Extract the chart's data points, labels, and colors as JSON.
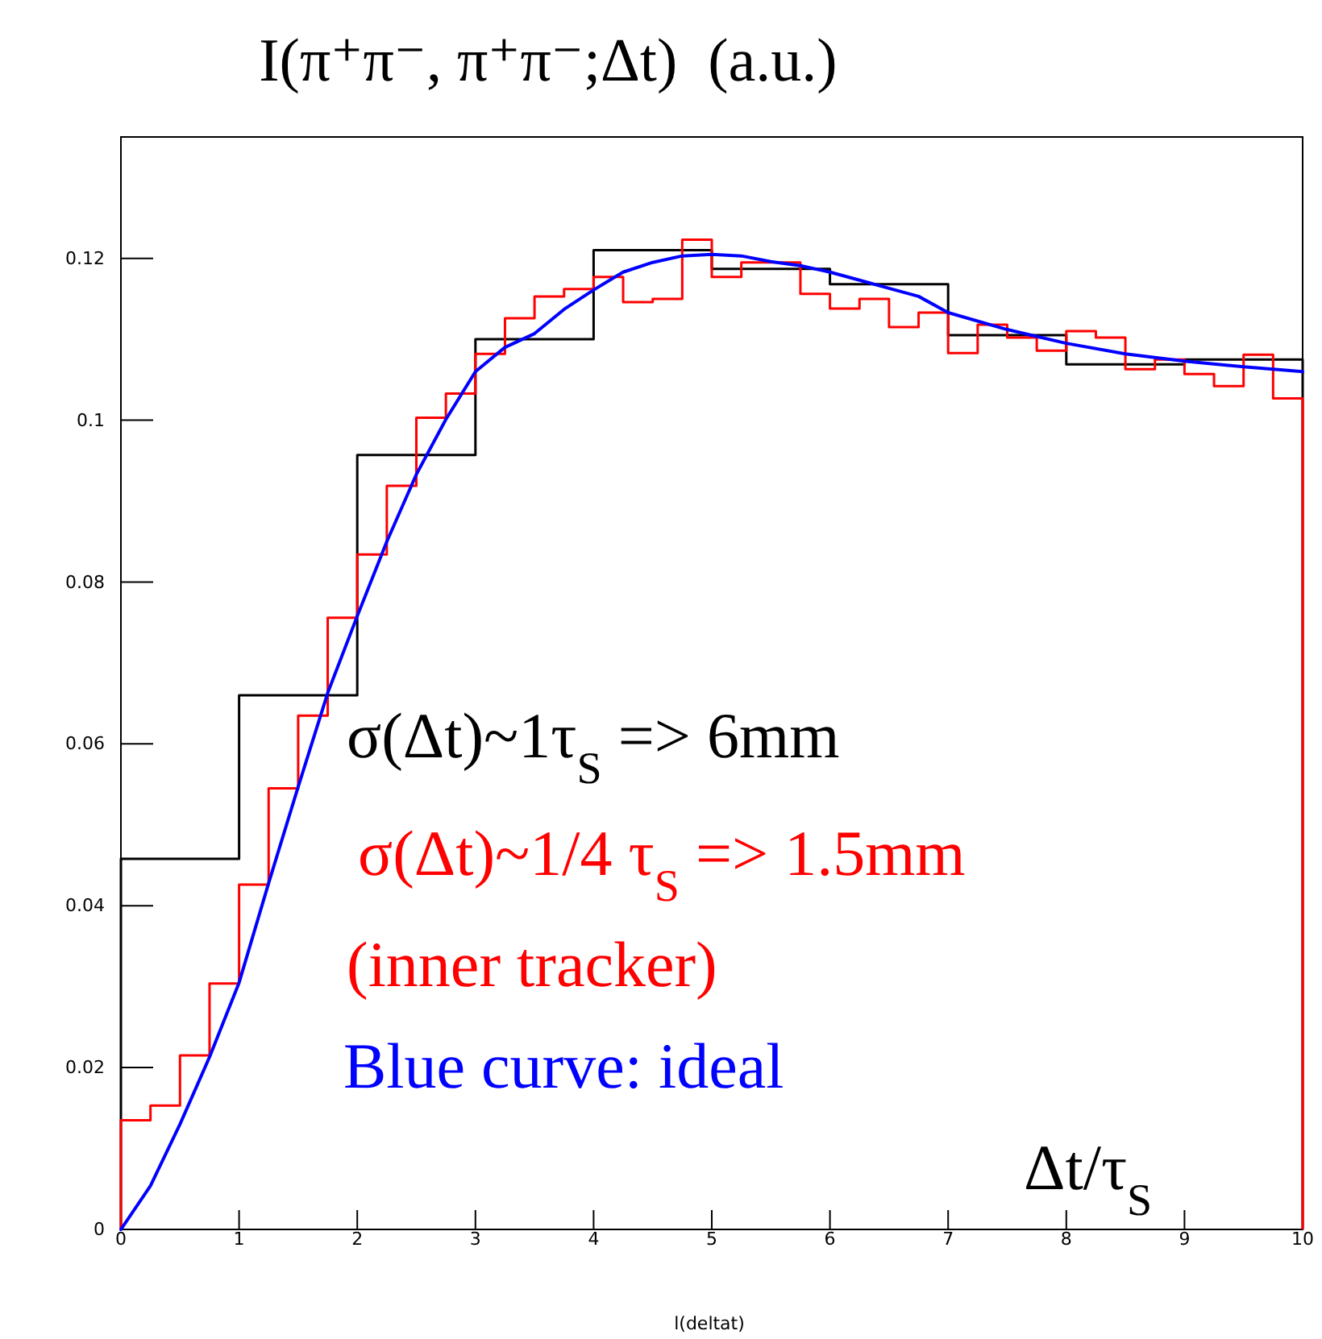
{
  "chart_data": {
    "type": "histogram",
    "title": "I(π⁺π⁻, π⁺π⁻;Δt)  (a.u.)",
    "xlabel": "l(deltat)",
    "xlim": [
      0,
      10
    ],
    "ylim": [
      0,
      0.135
    ],
    "xticks": [
      0,
      1,
      2,
      3,
      4,
      5,
      6,
      7,
      8,
      9,
      10
    ],
    "yticks": [
      0,
      0.02,
      0.04,
      0.06,
      0.08,
      {
        "value": 0.1,
        "label": "0.1"
      },
      0.12
    ],
    "grid": false,
    "annotations": [
      "σ(Δt)~1τ$_{S}$ => 6mm",
      "σ(Δt)~1/4 τ$_{S}$ => 1.5mm",
      "(inner tracker)",
      "Blue curve: ideal",
      "Δt/τ$_{S}$"
    ],
    "series": [
      {
        "color": "#000000",
        "bins": [
          0,
          1,
          2,
          3,
          4,
          5,
          6,
          7,
          8,
          9,
          10
        ],
        "values": [
          0.0458,
          0.066,
          0.0957,
          0.11,
          0.121,
          0.1187,
          0.1168,
          0.1105,
          0.1069,
          0.1075
        ]
      },
      {
        "color": "#ff0000",
        "bins": [
          0,
          0.25,
          0.5,
          0.75,
          1,
          1.25,
          1.5,
          1.75,
          2,
          2.25,
          2.5,
          2.75,
          3,
          3.25,
          3.5,
          3.75,
          4,
          4.25,
          4.5,
          4.75,
          5,
          5.25,
          5.5,
          5.75,
          6,
          6.25,
          6.5,
          6.75,
          7,
          7.25,
          7.5,
          7.75,
          8,
          8.25,
          8.5,
          8.75,
          9,
          9.25,
          9.5,
          9.75,
          10
        ],
        "values": [
          0.0135,
          0.0153,
          0.0215,
          0.0304,
          0.0426,
          0.0545,
          0.0635,
          0.0756,
          0.0834,
          0.0919,
          0.1003,
          0.1033,
          0.1082,
          0.1126,
          0.1153,
          0.1162,
          0.1177,
          0.1146,
          0.115,
          0.1223,
          0.1177,
          0.1195,
          0.1195,
          0.1156,
          0.1138,
          0.115,
          0.1115,
          0.1133,
          0.1083,
          0.1118,
          0.1102,
          0.1086,
          0.111,
          0.1102,
          0.1063,
          0.1075,
          0.1057,
          0.1042,
          0.1081,
          0.1027
        ]
      },
      {
        "type": "line",
        "color": "#0000ff",
        "x": [
          0,
          0.25,
          0.5,
          0.75,
          1,
          1.25,
          1.5,
          1.75,
          2,
          2.25,
          2.5,
          2.75,
          3,
          3.25,
          3.5,
          3.75,
          4,
          4.25,
          4.5,
          4.75,
          5,
          5.25,
          5.5,
          5.75,
          6,
          6.25,
          6.5,
          6.75,
          7,
          7.5,
          8,
          8.5,
          9,
          9.5,
          10
        ],
        "values": [
          0,
          0.0054,
          0.013,
          0.0213,
          0.0305,
          0.0428,
          0.0547,
          0.0663,
          0.0758,
          0.085,
          0.0933,
          0.1001,
          0.106,
          0.109,
          0.1107,
          0.1137,
          0.1161,
          0.1183,
          0.1195,
          0.1203,
          0.1205,
          0.1203,
          0.1196,
          0.1191,
          0.1183,
          0.1173,
          0.1163,
          0.1153,
          0.1133,
          0.1112,
          0.1095,
          0.1082,
          0.1073,
          0.1066,
          0.106
        ]
      }
    ]
  }
}
